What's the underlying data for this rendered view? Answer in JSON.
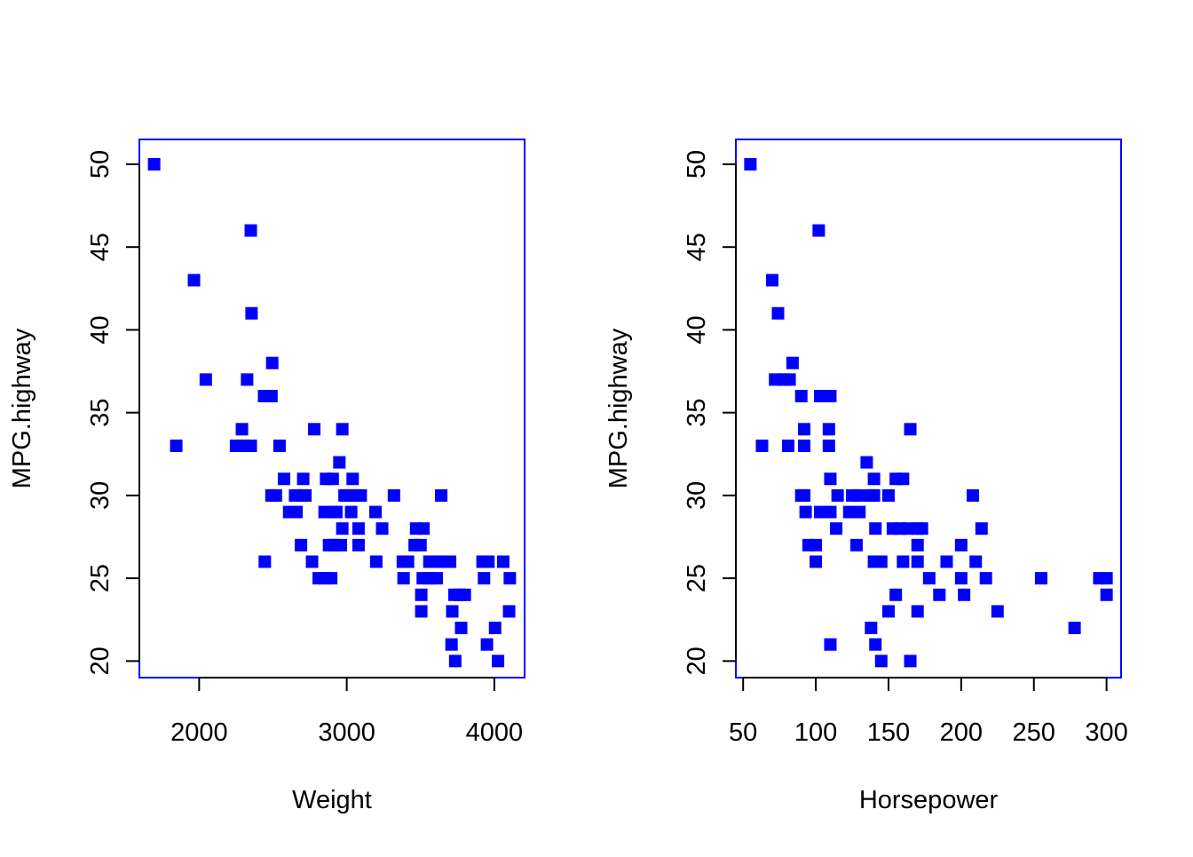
{
  "colors": {
    "points": "#0000FF",
    "box": "#0000FF",
    "axis": "#000000"
  },
  "chart_data": [
    {
      "type": "scatter",
      "title": "",
      "xlabel": "Weight",
      "ylabel": "MPG.highway",
      "xlim": [
        1595,
        4205
      ],
      "ylim": [
        19,
        51.5
      ],
      "xticks": [
        2000,
        3000,
        4000
      ],
      "yticks": [
        20,
        25,
        30,
        35,
        40,
        45,
        50
      ],
      "marker": "square",
      "grid": false,
      "legend": "none",
      "points": [
        [
          1695,
          50
        ],
        [
          1845,
          33
        ],
        [
          1965,
          43
        ],
        [
          2045,
          37
        ],
        [
          2350,
          46
        ],
        [
          2355,
          41
        ],
        [
          2325,
          37
        ],
        [
          2495,
          38
        ],
        [
          2440,
          36
        ],
        [
          2490,
          36
        ],
        [
          2290,
          34
        ],
        [
          2250,
          33
        ],
        [
          2300,
          33
        ],
        [
          2350,
          33
        ],
        [
          2545,
          33
        ],
        [
          2780,
          34
        ],
        [
          2970,
          34
        ],
        [
          2950,
          32
        ],
        [
          2575,
          31
        ],
        [
          2705,
          31
        ],
        [
          2860,
          31
        ],
        [
          2905,
          31
        ],
        [
          3040,
          31
        ],
        [
          2490,
          30
        ],
        [
          2520,
          30
        ],
        [
          2650,
          30
        ],
        [
          2695,
          30
        ],
        [
          2720,
          30
        ],
        [
          2985,
          30
        ],
        [
          3010,
          30
        ],
        [
          3060,
          30
        ],
        [
          3095,
          30
        ],
        [
          3320,
          30
        ],
        [
          3640,
          30
        ],
        [
          2610,
          29
        ],
        [
          2660,
          29
        ],
        [
          2850,
          29
        ],
        [
          2895,
          29
        ],
        [
          2930,
          29
        ],
        [
          3030,
          29
        ],
        [
          3195,
          29
        ],
        [
          2970,
          28
        ],
        [
          3080,
          28
        ],
        [
          3240,
          28
        ],
        [
          3470,
          28
        ],
        [
          3520,
          28
        ],
        [
          2690,
          27
        ],
        [
          2880,
          27
        ],
        [
          2920,
          27
        ],
        [
          2960,
          27
        ],
        [
          3080,
          27
        ],
        [
          3460,
          27
        ],
        [
          3500,
          27
        ],
        [
          2445,
          26
        ],
        [
          2765,
          26
        ],
        [
          3200,
          26
        ],
        [
          3380,
          26
        ],
        [
          3415,
          26
        ],
        [
          3560,
          26
        ],
        [
          3590,
          26
        ],
        [
          3620,
          26
        ],
        [
          3650,
          26
        ],
        [
          3700,
          26
        ],
        [
          3920,
          26
        ],
        [
          3960,
          26
        ],
        [
          4060,
          26
        ],
        [
          2810,
          25
        ],
        [
          2850,
          25
        ],
        [
          2895,
          25
        ],
        [
          3385,
          25
        ],
        [
          3515,
          25
        ],
        [
          3560,
          25
        ],
        [
          3610,
          25
        ],
        [
          3930,
          25
        ],
        [
          4105,
          25
        ],
        [
          3505,
          24
        ],
        [
          3730,
          24
        ],
        [
          3765,
          24
        ],
        [
          3800,
          24
        ],
        [
          3505,
          23
        ],
        [
          3715,
          23
        ],
        [
          4100,
          23
        ],
        [
          3775,
          22
        ],
        [
          4005,
          22
        ],
        [
          3710,
          21
        ],
        [
          3950,
          21
        ],
        [
          3735,
          20
        ],
        [
          4025,
          20
        ]
      ]
    },
    {
      "type": "scatter",
      "title": "",
      "xlabel": "Horsepower",
      "ylabel": "MPG.highway",
      "xlim": [
        45,
        310
      ],
      "ylim": [
        19,
        51.5
      ],
      "xticks": [
        50,
        100,
        150,
        200,
        250,
        300
      ],
      "yticks": [
        20,
        25,
        30,
        35,
        40,
        45,
        50
      ],
      "marker": "square",
      "grid": false,
      "legend": "none",
      "points": [
        [
          55,
          50
        ],
        [
          102,
          46
        ],
        [
          70,
          43
        ],
        [
          74,
          41
        ],
        [
          84,
          38
        ],
        [
          72,
          37
        ],
        [
          78,
          37
        ],
        [
          82,
          37
        ],
        [
          90,
          36
        ],
        [
          103,
          36
        ],
        [
          110,
          36
        ],
        [
          92,
          34
        ],
        [
          109,
          34
        ],
        [
          165,
          34
        ],
        [
          63,
          33
        ],
        [
          81,
          33
        ],
        [
          92,
          33
        ],
        [
          109,
          33
        ],
        [
          135,
          32
        ],
        [
          110,
          31
        ],
        [
          140,
          31
        ],
        [
          155,
          31
        ],
        [
          160,
          31
        ],
        [
          90,
          30
        ],
        [
          92,
          30
        ],
        [
          115,
          30
        ],
        [
          125,
          30
        ],
        [
          130,
          30
        ],
        [
          138,
          30
        ],
        [
          140,
          30
        ],
        [
          150,
          30
        ],
        [
          208,
          30
        ],
        [
          93,
          29
        ],
        [
          103,
          29
        ],
        [
          110,
          29
        ],
        [
          123,
          29
        ],
        [
          130,
          29
        ],
        [
          114,
          28
        ],
        [
          141,
          28
        ],
        [
          153,
          28
        ],
        [
          158,
          28
        ],
        [
          163,
          28
        ],
        [
          170,
          28
        ],
        [
          173,
          28
        ],
        [
          214,
          28
        ],
        [
          95,
          27
        ],
        [
          100,
          27
        ],
        [
          128,
          27
        ],
        [
          170,
          27
        ],
        [
          200,
          27
        ],
        [
          100,
          26
        ],
        [
          140,
          26
        ],
        [
          145,
          26
        ],
        [
          160,
          26
        ],
        [
          170,
          26
        ],
        [
          190,
          26
        ],
        [
          210,
          26
        ],
        [
          178,
          25
        ],
        [
          200,
          25
        ],
        [
          217,
          25
        ],
        [
          255,
          25
        ],
        [
          295,
          25
        ],
        [
          300,
          25
        ],
        [
          155,
          24
        ],
        [
          185,
          24
        ],
        [
          202,
          24
        ],
        [
          300,
          24
        ],
        [
          150,
          23
        ],
        [
          170,
          23
        ],
        [
          225,
          23
        ],
        [
          138,
          22
        ],
        [
          278,
          22
        ],
        [
          110,
          21
        ],
        [
          141,
          21
        ],
        [
          145,
          20
        ],
        [
          165,
          20
        ]
      ]
    }
  ]
}
